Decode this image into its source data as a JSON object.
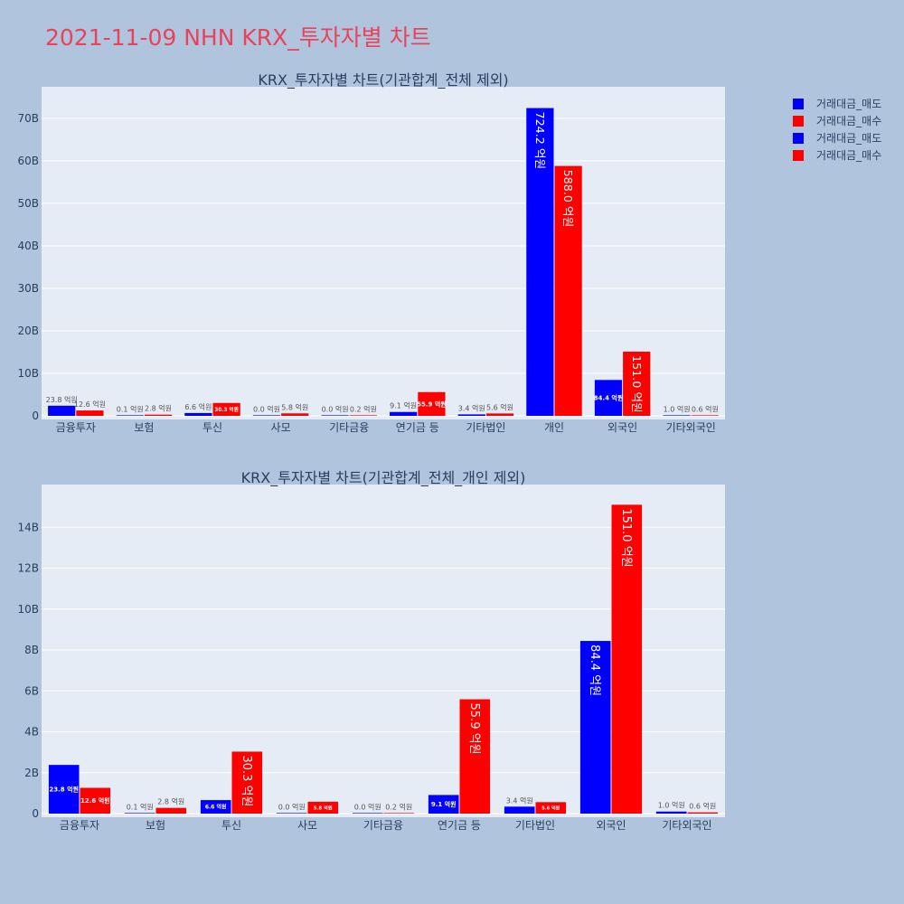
{
  "title": "2021-11-09 NHN KRX_투자자별 차트",
  "colors": {
    "sell": "#0000ff",
    "buy": "#ff0000",
    "title": "#e8435a"
  },
  "legend": [
    {
      "label": "거래대금_매도",
      "color": "#0000ff"
    },
    {
      "label": "거래대금_매수",
      "color": "#ff0000"
    },
    {
      "label": "거래대금_매도",
      "color": "#0000ff"
    },
    {
      "label": "거래대금_매수",
      "color": "#ff0000"
    }
  ],
  "chart_data": [
    {
      "type": "bar",
      "title": "KRX_투자자별 차트(기관합계_전체 제외)",
      "categories": [
        "금융투자",
        "보험",
        "투신",
        "사모",
        "기타금융",
        "연기금 등",
        "기타법인",
        "개인",
        "외국인",
        "기타외국인"
      ],
      "ylim": [
        0,
        77
      ],
      "yticks": [
        0,
        10,
        20,
        30,
        40,
        50,
        60,
        70
      ],
      "ytick_labels": [
        "0",
        "10B",
        "20B",
        "30B",
        "40B",
        "50B",
        "60B",
        "70B"
      ],
      "unit": "B",
      "grid": true,
      "series": [
        {
          "name": "거래대금_매도",
          "color": "#0000ff",
          "values": [
            2.38,
            0.01,
            0.66,
            0.0,
            0.0,
            0.91,
            0.34,
            72.42,
            8.44,
            0.1
          ],
          "labels": [
            "23.8 억원",
            "0.1 억원",
            "6.6 억원",
            "0.0 억원",
            "0.0 억원",
            "9.1 억원",
            "3.4 억원",
            "724.2 억원",
            "84.4 억원",
            "1.0 억원"
          ]
        },
        {
          "name": "거래대금_매수",
          "color": "#ff0000",
          "values": [
            1.26,
            0.28,
            3.03,
            0.58,
            0.02,
            5.59,
            0.56,
            58.8,
            15.1,
            0.06
          ],
          "labels": [
            "12.6 억원",
            "2.8 억원",
            "30.3 억원",
            "5.8 억원",
            "0.2 억원",
            "55.9 억원",
            "5.6 억원",
            "588.0 억원",
            "151.0 억원",
            "0.6 억원"
          ]
        }
      ]
    },
    {
      "type": "bar",
      "title": "KRX_투자자별 차트(기관합계_전체_개인 제외)",
      "categories": [
        "금융투자",
        "보험",
        "투신",
        "사모",
        "기타금융",
        "연기금 등",
        "기타법인",
        "외국인",
        "기타외국인"
      ],
      "ylim": [
        0,
        16
      ],
      "yticks": [
        0,
        2,
        4,
        6,
        8,
        10,
        12,
        14
      ],
      "ytick_labels": [
        "0",
        "2B",
        "4B",
        "6B",
        "8B",
        "10B",
        "12B",
        "14B"
      ],
      "unit": "B",
      "grid": true,
      "series": [
        {
          "name": "거래대금_매도",
          "color": "#0000ff",
          "values": [
            2.38,
            0.01,
            0.66,
            0.0,
            0.0,
            0.91,
            0.34,
            8.44,
            0.1
          ],
          "labels": [
            "23.8 억원",
            "0.1 억원",
            "6.6 억원",
            "0.0 억원",
            "0.0 억원",
            "9.1 억원",
            "3.4 억원",
            "84.4 억원",
            "1.0 억원"
          ]
        },
        {
          "name": "거래대금_매수",
          "color": "#ff0000",
          "values": [
            1.26,
            0.28,
            3.03,
            0.58,
            0.02,
            5.59,
            0.56,
            15.1,
            0.06
          ],
          "labels": [
            "12.6 억원",
            "2.8 억원",
            "30.3 억원",
            "5.8 억원",
            "0.2 억원",
            "55.9 억원",
            "5.6 억원",
            "151.0 억원",
            "0.6 억원"
          ]
        }
      ]
    }
  ]
}
